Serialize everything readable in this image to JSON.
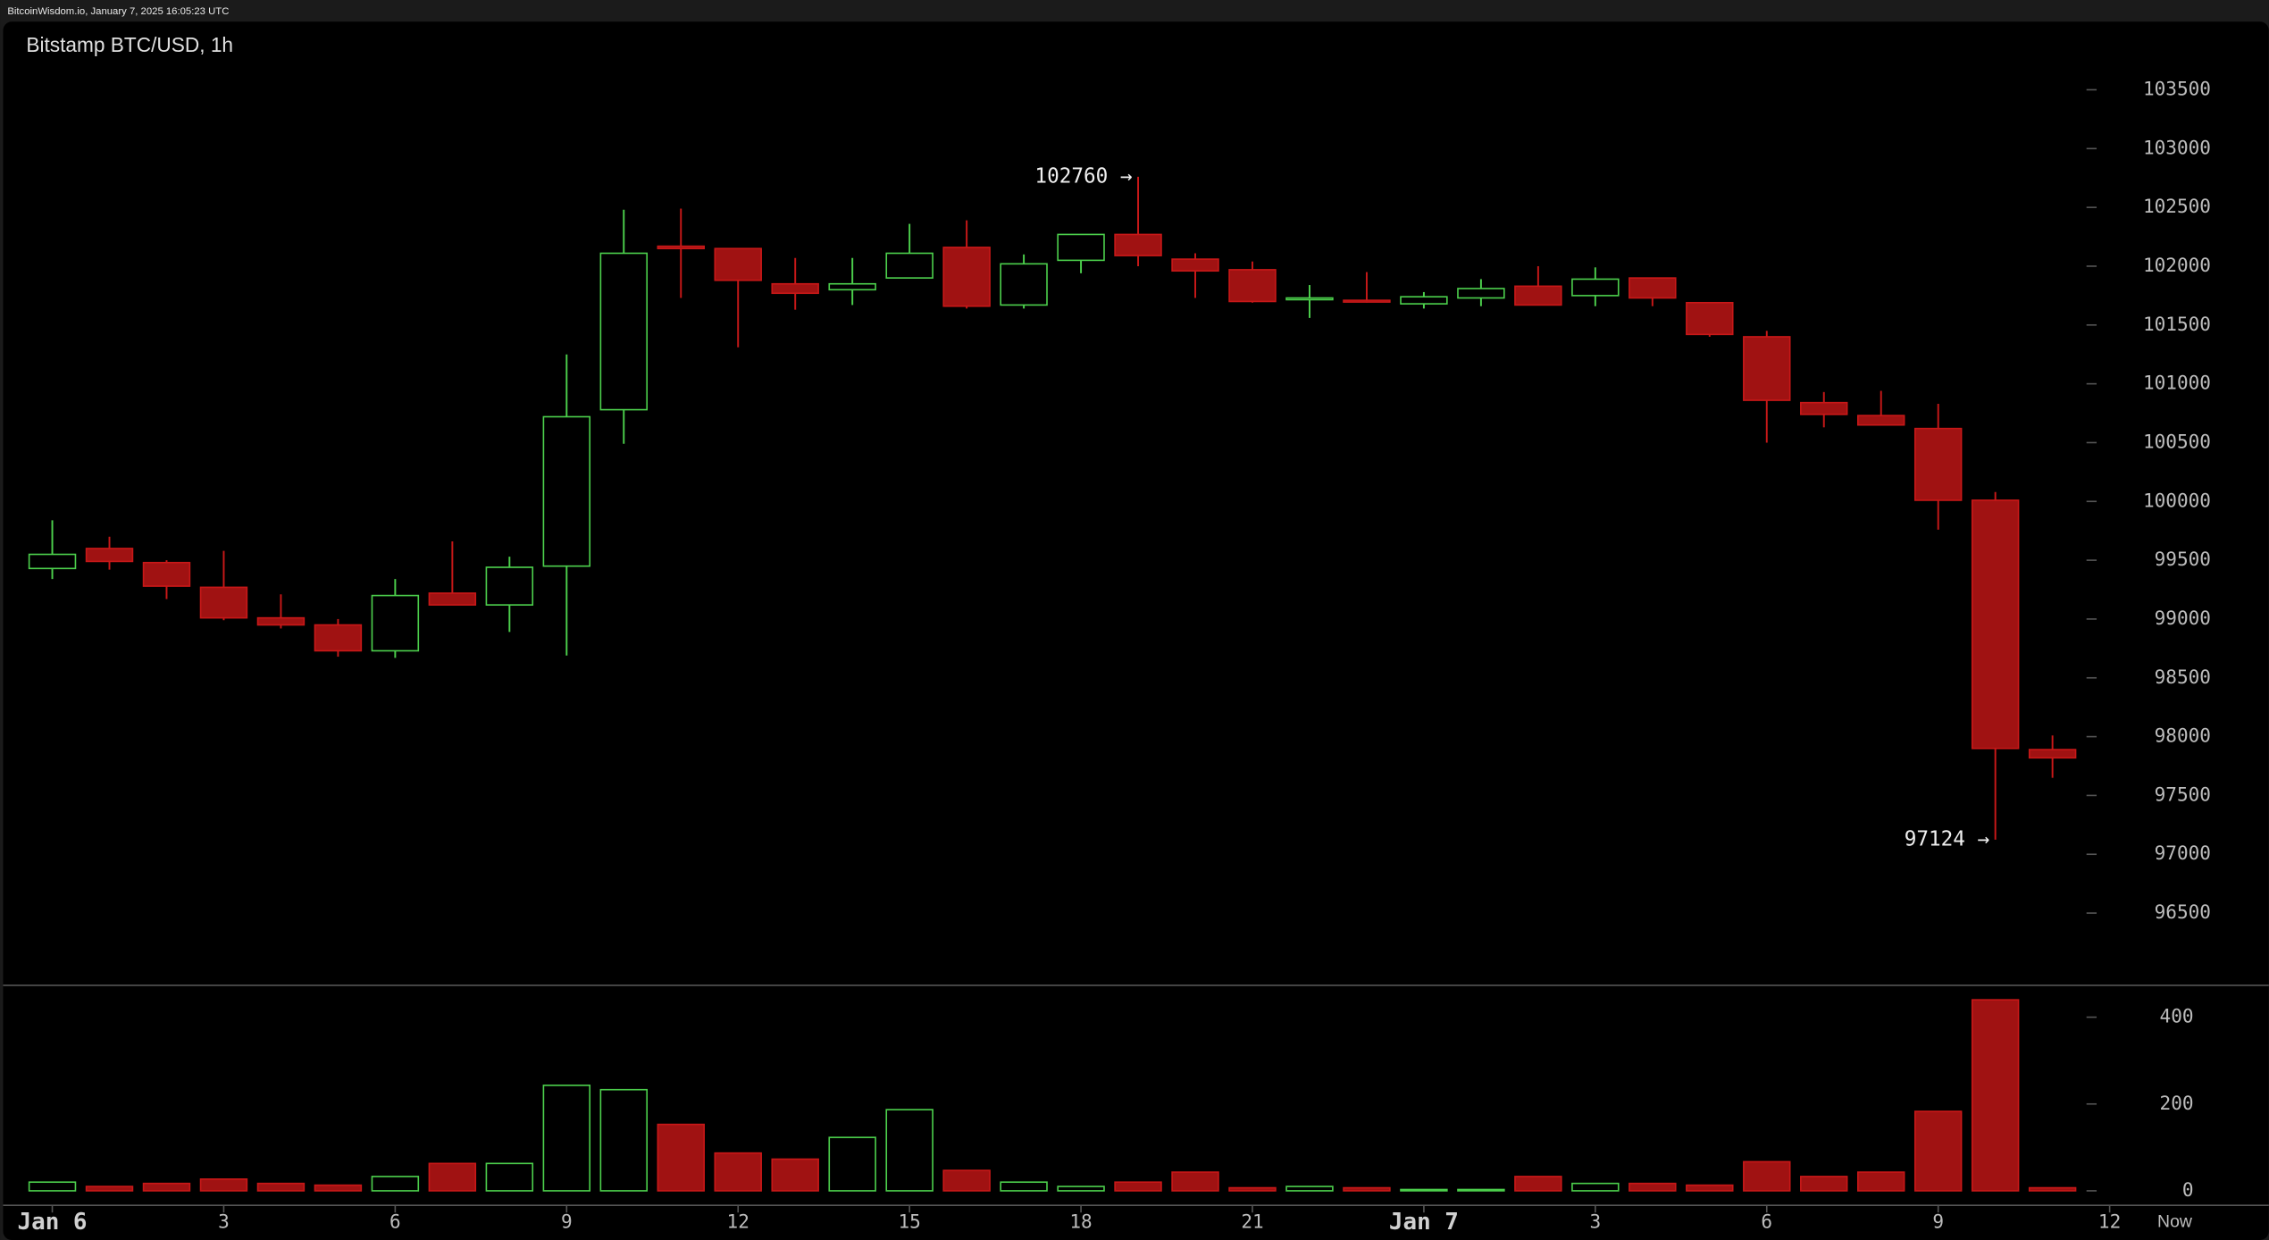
{
  "header": "BitcoinWisdom.io, January 7, 2025 16:05:23 UTC",
  "chart_data": {
    "type": "candlestick",
    "title": "Bitstamp BTC/USD, 1h",
    "up_color": "#4ccf4c",
    "down_color": "#a01212",
    "open": [
      99430,
      99600,
      99480,
      99270,
      99010,
      98950,
      98730,
      99220,
      99120,
      99450,
      100780,
      102170,
      102150,
      101850,
      101800,
      101900,
      102160,
      101670,
      102050,
      102270,
      102060,
      101970,
      101720,
      101710,
      101680,
      101730,
      101830,
      101750,
      101900,
      101690,
      101400,
      100840,
      100730,
      100620,
      100010,
      97890
    ],
    "high": [
      99840,
      99700,
      99500,
      99580,
      99210,
      99000,
      99340,
      99660,
      99530,
      101250,
      102480,
      102490,
      102150,
      102070,
      102070,
      102360,
      102390,
      102100,
      102270,
      102760,
      102110,
      102040,
      101840,
      101950,
      101780,
      101890,
      102000,
      101990,
      101900,
      101690,
      101450,
      100930,
      100940,
      100830,
      100080,
      98010
    ],
    "low": [
      99340,
      99420,
      99170,
      98990,
      98920,
      98680,
      98670,
      99120,
      98890,
      98690,
      100490,
      101730,
      101310,
      101630,
      101670,
      101900,
      101640,
      101640,
      101940,
      102000,
      101730,
      101690,
      101560,
      101690,
      101640,
      101660,
      101670,
      101660,
      101660,
      101400,
      100500,
      100630,
      100650,
      99760,
      97124,
      97650
    ],
    "close": [
      99550,
      99490,
      99280,
      99010,
      98950,
      98730,
      99200,
      99120,
      99440,
      100720,
      102110,
      102150,
      101880,
      101770,
      101850,
      102110,
      101660,
      102020,
      102270,
      102090,
      101960,
      101700,
      101730,
      101700,
      101740,
      101810,
      101670,
      101890,
      101730,
      101420,
      100860,
      100740,
      100650,
      100010,
      97900,
      97820
    ],
    "volume": [
      20,
      10,
      17,
      27,
      17,
      13,
      33,
      63,
      63,
      243,
      233,
      153,
      87,
      73,
      123,
      187,
      47,
      20,
      10,
      20,
      43,
      7,
      10,
      7,
      3,
      3,
      33,
      17,
      17,
      13,
      67,
      33,
      43,
      183,
      440,
      7
    ],
    "ylim": [
      96000,
      104000
    ],
    "yticks": [
      96500,
      97000,
      97500,
      98000,
      98500,
      99000,
      99500,
      100000,
      100500,
      101000,
      101500,
      102000,
      102500,
      103000,
      103500
    ],
    "volume_ylim": [
      0,
      450
    ],
    "volume_yticks": [
      0,
      200,
      400
    ],
    "xlim": [
      -0.5,
      37.5
    ],
    "xticks": [
      {
        "value": 0,
        "label": "Jan 6"
      },
      3,
      6,
      9,
      12,
      15,
      18,
      21,
      {
        "value": 24,
        "label": "Jan 7"
      },
      {
        "value": 27,
        "label": "3"
      },
      {
        "value": 30,
        "label": "6"
      },
      {
        "value": 33,
        "label": "9"
      },
      {
        "value": 36,
        "label": "12"
      }
    ],
    "now_label": "Now",
    "annotations": [
      {
        "label": "102760 →",
        "x": 19,
        "y": 102760
      },
      {
        "label": "97124 →",
        "x": 34,
        "y": 97124
      }
    ]
  }
}
